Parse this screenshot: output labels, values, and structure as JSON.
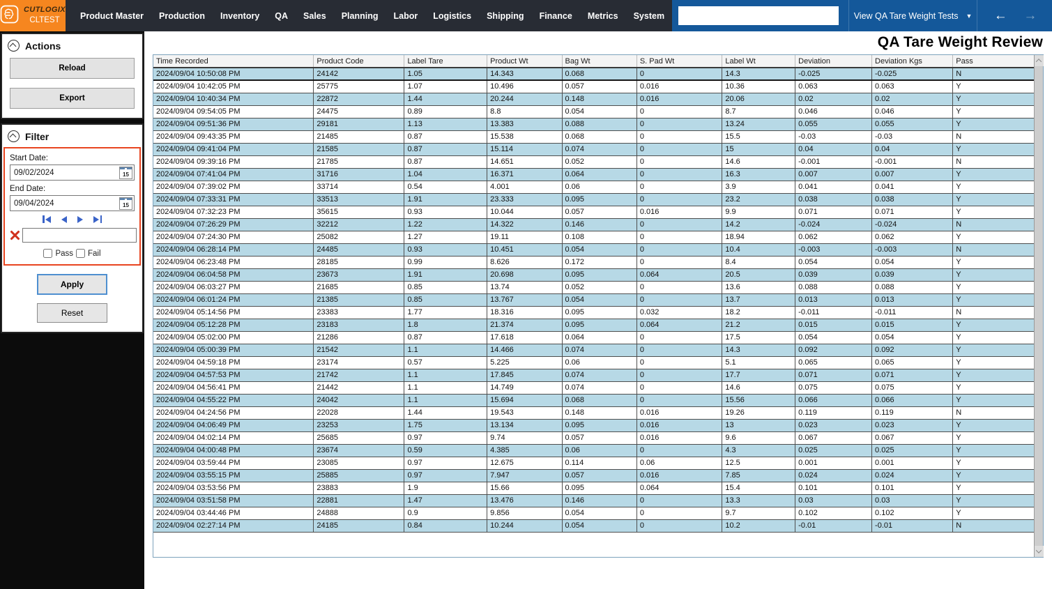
{
  "app": {
    "logo_title": "CUTLOGIX",
    "logo_subtitle": "CLTEST",
    "page_title": "QA Tare Weight Review"
  },
  "topnav": {
    "items": [
      "Product Master",
      "Production",
      "Inventory",
      "QA",
      "Sales",
      "Planning",
      "Labor",
      "Logistics",
      "Shipping",
      "Finance",
      "Metrics",
      "System"
    ],
    "search_value": "",
    "view_dropdown_label": "View QA Tare Weight Tests",
    "icons": {
      "dropdown_caret": "▼",
      "back": "←",
      "forward": "→",
      "close": "×",
      "favorite": "☆"
    }
  },
  "actions_panel": {
    "title": "Actions",
    "buttons": [
      "Reload",
      "Export"
    ]
  },
  "filter_panel": {
    "title": "Filter",
    "start_date_label": "Start Date:",
    "start_date_value": "09/02/2024",
    "end_date_label": "End Date:",
    "end_date_value": "09/04/2024",
    "calendar_day": "15",
    "clear_search_value": "",
    "pass_label": "Pass",
    "fail_label": "Fail",
    "pass_checked": false,
    "fail_checked": false,
    "apply_label": "Apply",
    "reset_label": "Reset"
  },
  "table": {
    "columns": [
      "Time Recorded",
      "Product Code",
      "Label Tare",
      "Product Wt",
      "Bag Wt",
      "S. Pad Wt",
      "Label Wt",
      "Deviation",
      "Deviation Kgs",
      "Pass"
    ],
    "selected_row_index": 0,
    "rows": [
      [
        "2024/09/04 10:50:08 PM",
        "24142",
        "1.05",
        "14.343",
        "0.068",
        "0",
        "14.3",
        "-0.025",
        "-0.025",
        "N"
      ],
      [
        "2024/09/04 10:42:05 PM",
        "25775",
        "1.07",
        "10.496",
        "0.057",
        "0.016",
        "10.36",
        "0.063",
        "0.063",
        "Y"
      ],
      [
        "2024/09/04 10:40:34 PM",
        "22872",
        "1.44",
        "20.244",
        "0.148",
        "0.016",
        "20.06",
        "0.02",
        "0.02",
        "Y"
      ],
      [
        "2024/09/04 09:54:05 PM",
        "24475",
        "0.89",
        "8.8",
        "0.054",
        "0",
        "8.7",
        "0.046",
        "0.046",
        "Y"
      ],
      [
        "2024/09/04 09:51:36 PM",
        "29181",
        "1.13",
        "13.383",
        "0.088",
        "0",
        "13.24",
        "0.055",
        "0.055",
        "Y"
      ],
      [
        "2024/09/04 09:43:35 PM",
        "21485",
        "0.87",
        "15.538",
        "0.068",
        "0",
        "15.5",
        "-0.03",
        "-0.03",
        "N"
      ],
      [
        "2024/09/04 09:41:04 PM",
        "21585",
        "0.87",
        "15.114",
        "0.074",
        "0",
        "15",
        "0.04",
        "0.04",
        "Y"
      ],
      [
        "2024/09/04 09:39:16 PM",
        "21785",
        "0.87",
        "14.651",
        "0.052",
        "0",
        "14.6",
        "-0.001",
        "-0.001",
        "N"
      ],
      [
        "2024/09/04 07:41:04 PM",
        "31716",
        "1.04",
        "16.371",
        "0.064",
        "0",
        "16.3",
        "0.007",
        "0.007",
        "Y"
      ],
      [
        "2024/09/04 07:39:02 PM",
        "33714",
        "0.54",
        "4.001",
        "0.06",
        "0",
        "3.9",
        "0.041",
        "0.041",
        "Y"
      ],
      [
        "2024/09/04 07:33:31 PM",
        "33513",
        "1.91",
        "23.333",
        "0.095",
        "0",
        "23.2",
        "0.038",
        "0.038",
        "Y"
      ],
      [
        "2024/09/04 07:32:23 PM",
        "35615",
        "0.93",
        "10.044",
        "0.057",
        "0.016",
        "9.9",
        "0.071",
        "0.071",
        "Y"
      ],
      [
        "2024/09/04 07:26:29 PM",
        "32212",
        "1.22",
        "14.322",
        "0.146",
        "0",
        "14.2",
        "-0.024",
        "-0.024",
        "N"
      ],
      [
        "2024/09/04 07:24:30 PM",
        "25082",
        "1.27",
        "19.11",
        "0.108",
        "0",
        "18.94",
        "0.062",
        "0.062",
        "Y"
      ],
      [
        "2024/09/04 06:28:14 PM",
        "24485",
        "0.93",
        "10.451",
        "0.054",
        "0",
        "10.4",
        "-0.003",
        "-0.003",
        "N"
      ],
      [
        "2024/09/04 06:23:48 PM",
        "28185",
        "0.99",
        "8.626",
        "0.172",
        "0",
        "8.4",
        "0.054",
        "0.054",
        "Y"
      ],
      [
        "2024/09/04 06:04:58 PM",
        "23673",
        "1.91",
        "20.698",
        "0.095",
        "0.064",
        "20.5",
        "0.039",
        "0.039",
        "Y"
      ],
      [
        "2024/09/04 06:03:27 PM",
        "21685",
        "0.85",
        "13.74",
        "0.052",
        "0",
        "13.6",
        "0.088",
        "0.088",
        "Y"
      ],
      [
        "2024/09/04 06:01:24 PM",
        "21385",
        "0.85",
        "13.767",
        "0.054",
        "0",
        "13.7",
        "0.013",
        "0.013",
        "Y"
      ],
      [
        "2024/09/04 05:14:56 PM",
        "23383",
        "1.77",
        "18.316",
        "0.095",
        "0.032",
        "18.2",
        "-0.011",
        "-0.011",
        "N"
      ],
      [
        "2024/09/04 05:12:28 PM",
        "23183",
        "1.8",
        "21.374",
        "0.095",
        "0.064",
        "21.2",
        "0.015",
        "0.015",
        "Y"
      ],
      [
        "2024/09/04 05:02:00 PM",
        "21286",
        "0.87",
        "17.618",
        "0.064",
        "0",
        "17.5",
        "0.054",
        "0.054",
        "Y"
      ],
      [
        "2024/09/04 05:00:39 PM",
        "21542",
        "1.1",
        "14.466",
        "0.074",
        "0",
        "14.3",
        "0.092",
        "0.092",
        "Y"
      ],
      [
        "2024/09/04 04:59:18 PM",
        "23174",
        "0.57",
        "5.225",
        "0.06",
        "0",
        "5.1",
        "0.065",
        "0.065",
        "Y"
      ],
      [
        "2024/09/04 04:57:53 PM",
        "21742",
        "1.1",
        "17.845",
        "0.074",
        "0",
        "17.7",
        "0.071",
        "0.071",
        "Y"
      ],
      [
        "2024/09/04 04:56:41 PM",
        "21442",
        "1.1",
        "14.749",
        "0.074",
        "0",
        "14.6",
        "0.075",
        "0.075",
        "Y"
      ],
      [
        "2024/09/04 04:55:22 PM",
        "24042",
        "1.1",
        "15.694",
        "0.068",
        "0",
        "15.56",
        "0.066",
        "0.066",
        "Y"
      ],
      [
        "2024/09/04 04:24:56 PM",
        "22028",
        "1.44",
        "19.543",
        "0.148",
        "0.016",
        "19.26",
        "0.119",
        "0.119",
        "N"
      ],
      [
        "2024/09/04 04:06:49 PM",
        "23253",
        "1.75",
        "13.134",
        "0.095",
        "0.016",
        "13",
        "0.023",
        "0.023",
        "Y"
      ],
      [
        "2024/09/04 04:02:14 PM",
        "25685",
        "0.97",
        "9.74",
        "0.057",
        "0.016",
        "9.6",
        "0.067",
        "0.067",
        "Y"
      ],
      [
        "2024/09/04 04:00:48 PM",
        "23674",
        "0.59",
        "4.385",
        "0.06",
        "0",
        "4.3",
        "0.025",
        "0.025",
        "Y"
      ],
      [
        "2024/09/04 03:59:44 PM",
        "23085",
        "0.97",
        "12.675",
        "0.114",
        "0.06",
        "12.5",
        "0.001",
        "0.001",
        "Y"
      ],
      [
        "2024/09/04 03:55:15 PM",
        "25885",
        "0.97",
        "7.947",
        "0.057",
        "0.016",
        "7.85",
        "0.024",
        "0.024",
        "Y"
      ],
      [
        "2024/09/04 03:53:56 PM",
        "23883",
        "1.9",
        "15.66",
        "0.095",
        "0.064",
        "15.4",
        "0.101",
        "0.101",
        "Y"
      ],
      [
        "2024/09/04 03:51:58 PM",
        "22881",
        "1.47",
        "13.476",
        "0.146",
        "0",
        "13.3",
        "0.03",
        "0.03",
        "Y"
      ],
      [
        "2024/09/04 03:44:46 PM",
        "24888",
        "0.9",
        "9.856",
        "0.054",
        "0",
        "9.7",
        "0.102",
        "0.102",
        "Y"
      ],
      [
        "2024/09/04 02:27:14 PM",
        "24185",
        "0.84",
        "10.244",
        "0.054",
        "0",
        "10.2",
        "-0.01",
        "-0.01",
        "N"
      ]
    ]
  },
  "colors": {
    "brand_orange": "#F6861F",
    "topbar_dark": "#282C34",
    "topbar_blue": "#14589A",
    "row_highlight_blue": "#B7D9E6",
    "filter_border_red": "#E8441F",
    "apply_border_blue": "#4E8FD0",
    "pager_arrow_blue": "#3A63C8",
    "clear_x_red": "#D0311D"
  }
}
